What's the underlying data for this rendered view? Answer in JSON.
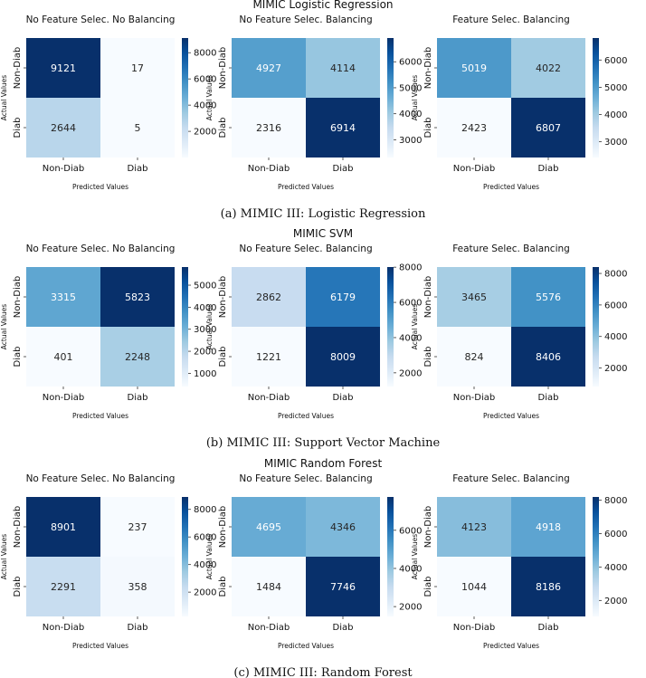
{
  "chart_data": [
    {
      "type": "heatmap",
      "title": "MIMIC Logistic Regression",
      "caption": "(a) MIMIC III: Logistic Regression",
      "xlabel": "Predicted Values",
      "ylabel": "Actual Values",
      "row_labels": [
        "Non-Diab",
        "Diab"
      ],
      "col_labels": [
        "Non-Diab",
        "Diab"
      ],
      "panels": [
        {
          "subtitle": "No Feature Selec. No Balancing",
          "matrix": [
            [
              9121,
              17
            ],
            [
              2644,
              5
            ]
          ],
          "colorbar_range": [
            5,
            9121
          ],
          "colorbar_ticks": [
            2000,
            4000,
            6000,
            8000
          ]
        },
        {
          "subtitle": "No Feature Selec. Balancing",
          "matrix": [
            [
              4927,
              4114
            ],
            [
              2316,
              6914
            ]
          ],
          "colorbar_range": [
            2316,
            6914
          ],
          "colorbar_ticks": [
            3000,
            4000,
            5000,
            6000
          ]
        },
        {
          "subtitle": "Feature Selec. Balancing",
          "matrix": [
            [
              5019,
              4022
            ],
            [
              2423,
              6807
            ]
          ],
          "colorbar_range": [
            2423,
            6807
          ],
          "colorbar_ticks": [
            3000,
            4000,
            5000,
            6000
          ]
        }
      ]
    },
    {
      "type": "heatmap",
      "title": "MIMIC SVM",
      "caption": "(b) MIMIC III: Support Vector Machine",
      "xlabel": "Predicted Values",
      "ylabel": "Actual Values",
      "row_labels": [
        "Non-Diab",
        "Diab"
      ],
      "col_labels": [
        "Non-Diab",
        "Diab"
      ],
      "panels": [
        {
          "subtitle": "No Feature Selec. No Balancing",
          "matrix": [
            [
              3315,
              5823
            ],
            [
              401,
              2248
            ]
          ],
          "colorbar_range": [
            401,
            5823
          ],
          "colorbar_ticks": [
            1000,
            2000,
            3000,
            4000,
            5000
          ]
        },
        {
          "subtitle": "No Feature Selec. Balancing",
          "matrix": [
            [
              2862,
              6179
            ],
            [
              1221,
              8009
            ]
          ],
          "colorbar_range": [
            1221,
            8009
          ],
          "colorbar_ticks": [
            2000,
            4000,
            6000,
            8000
          ]
        },
        {
          "subtitle": "Feature Selec. Balancing",
          "matrix": [
            [
              3465,
              5576
            ],
            [
              824,
              8406
            ]
          ],
          "colorbar_range": [
            824,
            8406
          ],
          "colorbar_ticks": [
            2000,
            4000,
            6000,
            8000
          ]
        }
      ]
    },
    {
      "type": "heatmap",
      "title": "MIMIC Random Forest",
      "caption": "(c) MIMIC III: Random Forest",
      "xlabel": "Predicted Values",
      "ylabel": "Actual Values",
      "row_labels": [
        "Non-Diab",
        "Diab"
      ],
      "col_labels": [
        "Non-Diab",
        "Diab"
      ],
      "panels": [
        {
          "subtitle": "No Feature Selec. No Balancing",
          "matrix": [
            [
              8901,
              237
            ],
            [
              2291,
              358
            ]
          ],
          "colorbar_range": [
            237,
            8901
          ],
          "colorbar_ticks": [
            2000,
            4000,
            6000,
            8000
          ]
        },
        {
          "subtitle": "No Feature Selec. Balancing",
          "matrix": [
            [
              4695,
              4346
            ],
            [
              1484,
              7746
            ]
          ],
          "colorbar_range": [
            1484,
            7746
          ],
          "colorbar_ticks": [
            2000,
            4000,
            6000
          ]
        },
        {
          "subtitle": "Feature Selec. Balancing",
          "matrix": [
            [
              4123,
              4918
            ],
            [
              1044,
              8186
            ]
          ],
          "colorbar_range": [
            1044,
            8186
          ],
          "colorbar_ticks": [
            2000,
            4000,
            6000,
            8000
          ]
        }
      ]
    }
  ]
}
